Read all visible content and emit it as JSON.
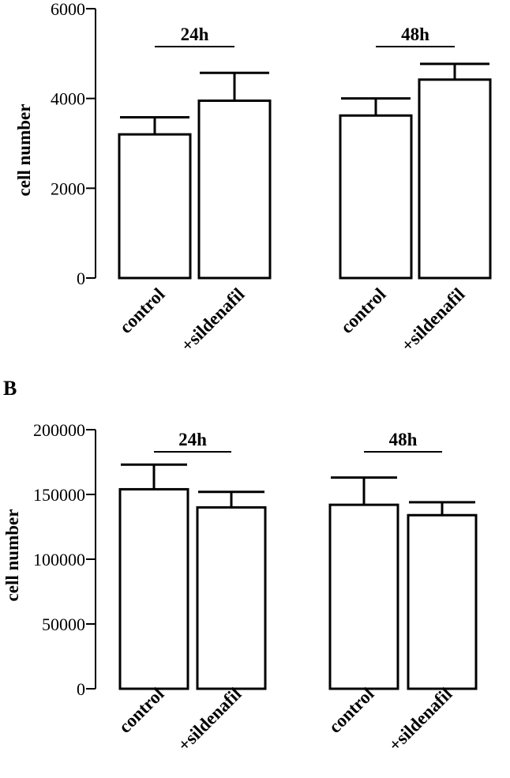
{
  "figure": {
    "panel_label_b": "B"
  },
  "chart_data": [
    {
      "type": "bar",
      "title": "",
      "xlabel": "",
      "ylabel": "cell number",
      "ylim": [
        0,
        6000
      ],
      "yticks": [
        "0",
        "2000",
        "4000",
        "6000"
      ],
      "categories": [
        "control",
        "+sildenafil",
        "control",
        "+sildenafil"
      ],
      "groups": [
        {
          "label": "24h",
          "categories": [
            0,
            1
          ]
        },
        {
          "label": "48h",
          "categories": [
            2,
            3
          ]
        }
      ],
      "values": [
        3200,
        3950,
        3620,
        4420
      ],
      "errors": [
        380,
        620,
        380,
        350
      ],
      "bar_fill": "#ffffff",
      "bar_stroke": "#000000"
    },
    {
      "type": "bar",
      "title": "",
      "xlabel": "",
      "ylabel": "cell number",
      "ylim": [
        0,
        200000
      ],
      "yticks": [
        "0",
        "50000",
        "100000",
        "150000",
        "200000"
      ],
      "categories": [
        "control",
        "+sildenafil",
        "control",
        "+sildenafil"
      ],
      "groups": [
        {
          "label": "24h",
          "categories": [
            0,
            1
          ]
        },
        {
          "label": "48h",
          "categories": [
            2,
            3
          ]
        }
      ],
      "values": [
        154000,
        140000,
        142000,
        134000
      ],
      "errors": [
        19000,
        12000,
        21000,
        10000
      ],
      "bar_fill": "#ffffff",
      "bar_stroke": "#000000"
    }
  ]
}
